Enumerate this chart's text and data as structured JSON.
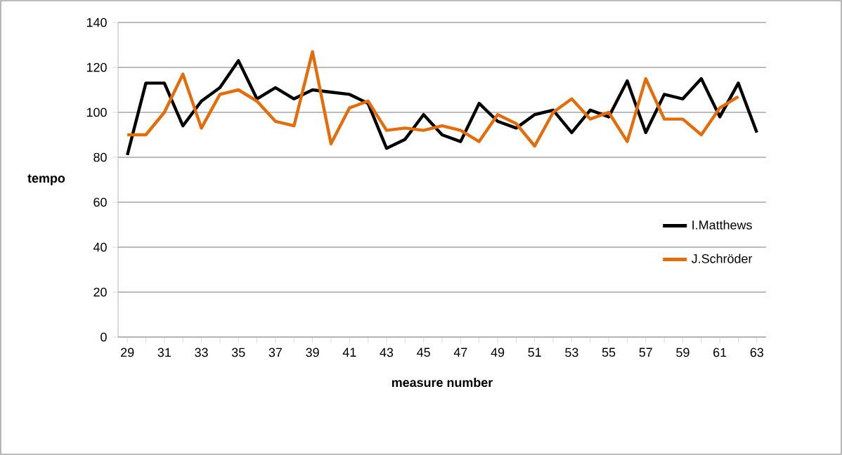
{
  "chart_data": {
    "type": "line",
    "xlabel": "measure number",
    "ylabel": "tempo",
    "categories": [
      "29",
      null,
      "31",
      null,
      "33",
      null,
      "35",
      null,
      "37",
      null,
      "39",
      null,
      "41",
      null,
      "43",
      null,
      "45",
      null,
      "47",
      null,
      "49",
      null,
      "51",
      null,
      "53",
      null,
      "55",
      null,
      "57",
      null,
      "59",
      null,
      "61",
      null,
      "63"
    ],
    "series": [
      {
        "name": "I.Matthews",
        "color": "#000000",
        "values": [
          81,
          113,
          113,
          94,
          105,
          111,
          123,
          106,
          111,
          106,
          110,
          109,
          108,
          104,
          84,
          88,
          99,
          90,
          87,
          104,
          96,
          93,
          99,
          101,
          91,
          101,
          98,
          114,
          91,
          108,
          106,
          115,
          98,
          113,
          91
        ]
      },
      {
        "name": "J.Schröder",
        "color": "#e46c0a",
        "values": [
          90,
          90,
          100,
          117,
          93,
          108,
          110,
          105,
          96,
          94,
          127,
          86,
          102,
          105,
          92,
          93,
          92,
          94,
          92,
          87,
          99,
          95,
          85,
          100,
          106,
          97,
          100,
          87,
          115,
          97,
          97,
          90,
          102,
          107,
          null
        ]
      }
    ],
    "ylim": [
      0,
      140
    ],
    "yticks": [
      0,
      20,
      40,
      60,
      80,
      100,
      120,
      140
    ],
    "grid": "y",
    "legend": "right",
    "marker": "none",
    "line_style": "solid"
  }
}
